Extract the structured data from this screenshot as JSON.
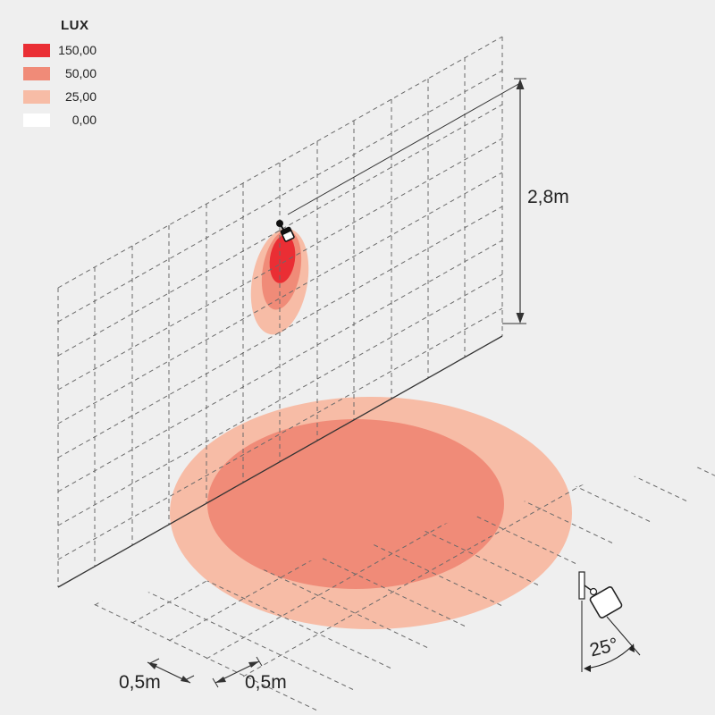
{
  "legend": {
    "title": "LUX",
    "items": [
      {
        "value": "150,00",
        "color": "#ea2e34"
      },
      {
        "value": "50,00",
        "color": "#f08b78"
      },
      {
        "value": "25,00",
        "color": "#f7bca6"
      },
      {
        "value": "0,00",
        "color": "#ffffff"
      }
    ]
  },
  "dimensions": {
    "height": "2,8m",
    "grid_x": "0,5m",
    "grid_y": "0,5m",
    "beam_angle": "25°"
  }
}
